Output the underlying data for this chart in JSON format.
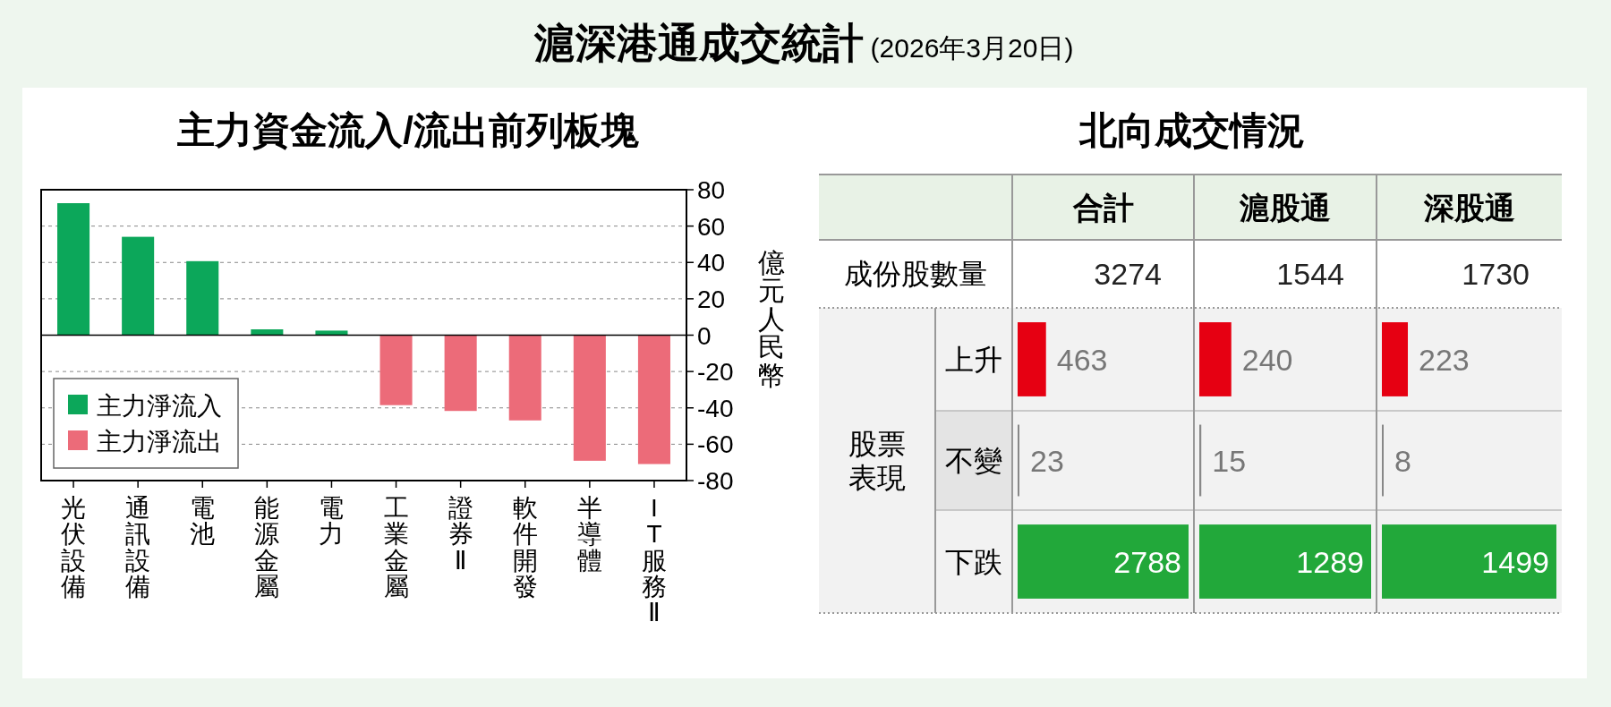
{
  "chart_data": [
    {
      "type": "other",
      "title": "滬深港通成交統計",
      "subtitle": "(2026年3月20日)"
    },
    {
      "type": "bar",
      "title": "主力資金流入/流出前列板塊",
      "ylabel": "億元人民幣",
      "categories": [
        "光伏設備",
        "通訊設備",
        "電池",
        "能源金屬",
        "電力",
        "工業金屬",
        "證券Ⅱ",
        "軟件開發",
        "半導體",
        "IT服務Ⅱ"
      ],
      "series": [
        {
          "name": "主力淨流入",
          "color": "#0ca75a",
          "values": [
            72.6,
            54.1,
            40.7,
            3.2,
            2.5,
            null,
            null,
            null,
            null,
            null
          ]
        },
        {
          "name": "主力淨流出",
          "color": "#ec6b79",
          "values": [
            null,
            null,
            null,
            null,
            null,
            -38.5,
            -41.7,
            -46.9,
            -69.1,
            -70.9
          ]
        }
      ],
      "ylim": [
        -80,
        80
      ],
      "yticks": [
        -80,
        -60,
        -40,
        -20,
        0,
        20,
        40,
        60,
        80
      ],
      "grid": "y",
      "legend": "bottom left"
    },
    {
      "type": "other",
      "title": "北向成交情況",
      "annotations": [
        "成份股數量",
        "3274",
        "1544",
        "1730",
        "股票表現"
      ]
    },
    {
      "type": "bar",
      "orientation": "horizontal",
      "title": "合計",
      "categories": [
        "上升",
        "不變",
        "下跌"
      ],
      "values": [
        463,
        23,
        2788
      ],
      "colors": [
        "#e60012",
        "#888888",
        "#22a83a"
      ],
      "data_labels": true
    },
    {
      "type": "bar",
      "orientation": "horizontal",
      "title": "滬股通",
      "categories": [
        "上升",
        "不變",
        "下跌"
      ],
      "tick_labels": false,
      "values": [
        240,
        15,
        1289
      ],
      "colors": [
        "#e60012",
        "#888888",
        "#22a83a"
      ],
      "data_labels": true
    },
    {
      "type": "bar",
      "orientation": "horizontal",
      "title": "深股通",
      "categories": [
        "上升",
        "不變",
        "下跌"
      ],
      "tick_labels": false,
      "values": [
        223,
        8,
        1499
      ],
      "colors": [
        "#e60012",
        "#888888",
        "#22a83a"
      ],
      "data_labels": true
    }
  ]
}
